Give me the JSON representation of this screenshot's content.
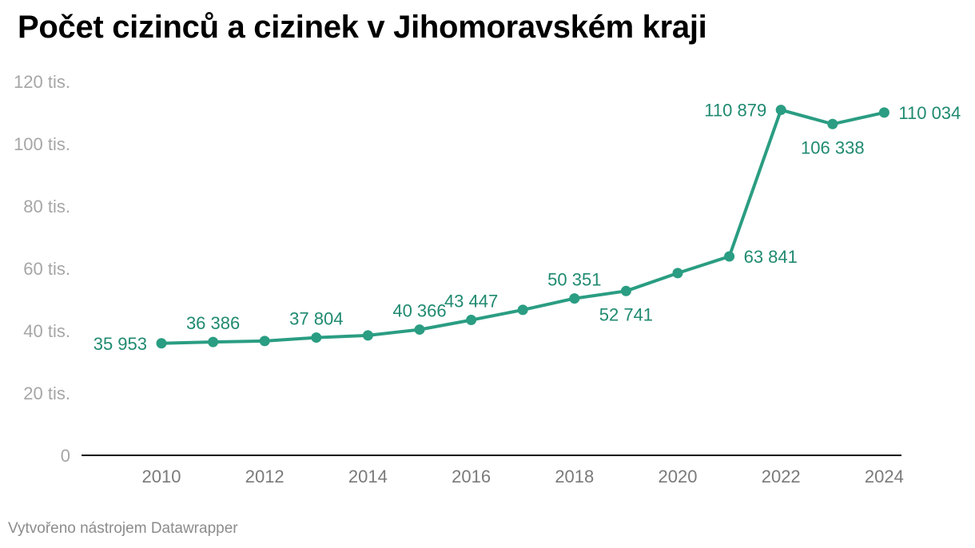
{
  "title": "Počet cizinců a cizinek v Jihomoravském kraji",
  "footer": "Vytvořeno nástrojem Datawrapper",
  "colors": {
    "line": "#2a9d82",
    "label": "#1f8a70",
    "axis": "#000000"
  },
  "chart_data": {
    "type": "line",
    "x": [
      2010,
      2011,
      2012,
      2013,
      2014,
      2015,
      2016,
      2017,
      2018,
      2019,
      2020,
      2021,
      2022,
      2023,
      2024
    ],
    "series": [
      {
        "values": [
          35953,
          36386,
          36700,
          37804,
          38500,
          40366,
          43447,
          46700,
          50351,
          52741,
          58500,
          63841,
          110879,
          106338,
          110034
        ]
      }
    ],
    "data_labels": [
      {
        "x": 2010,
        "text": "35 953",
        "pos": "left"
      },
      {
        "x": 2011,
        "text": "36 386",
        "pos": "above"
      },
      {
        "x": 2013,
        "text": "37 804",
        "pos": "above"
      },
      {
        "x": 2015,
        "text": "40 366",
        "pos": "above"
      },
      {
        "x": 2016,
        "text": "43 447",
        "pos": "above"
      },
      {
        "x": 2018,
        "text": "50 351",
        "pos": "above"
      },
      {
        "x": 2019,
        "text": "52 741",
        "pos": "below"
      },
      {
        "x": 2021,
        "text": "63 841",
        "pos": "right"
      },
      {
        "x": 2022,
        "text": "110 879",
        "pos": "left"
      },
      {
        "x": 2023,
        "text": "106 338",
        "pos": "below"
      },
      {
        "x": 2024,
        "text": "110 034",
        "pos": "right"
      }
    ],
    "y_ticks": [
      {
        "value": 0,
        "label": "0"
      },
      {
        "value": 20000,
        "label": "20 tis."
      },
      {
        "value": 40000,
        "label": "40 tis."
      },
      {
        "value": 60000,
        "label": "60 tis."
      },
      {
        "value": 80000,
        "label": "80 tis."
      },
      {
        "value": 100000,
        "label": "100 tis."
      },
      {
        "value": 120000,
        "label": "120 tis."
      }
    ],
    "x_ticks": [
      2010,
      2012,
      2014,
      2016,
      2018,
      2020,
      2022,
      2024
    ],
    "ylim": [
      0,
      120000
    ],
    "grid": false
  }
}
